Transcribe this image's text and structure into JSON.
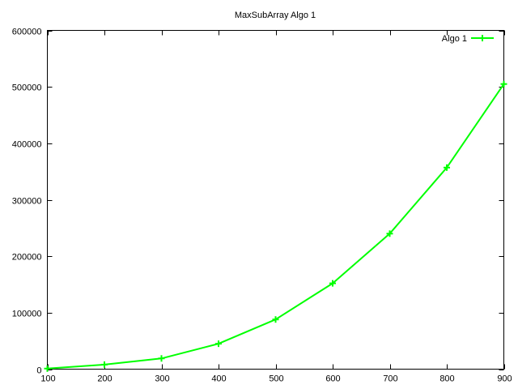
{
  "chart_data": {
    "type": "line",
    "title": "MaxSubArray Algo 1",
    "xlabel": "",
    "ylabel": "",
    "xlim": [
      100,
      900
    ],
    "ylim": [
      0,
      600000
    ],
    "x_ticks": [
      100,
      200,
      300,
      400,
      500,
      600,
      700,
      800,
      900
    ],
    "y_ticks": [
      0,
      100000,
      200000,
      300000,
      400000,
      500000,
      600000
    ],
    "grid": false,
    "legend_position": "top-right",
    "series": [
      {
        "name": "Algo 1",
        "color": "#00ff00",
        "marker": "plus",
        "x": [
          100,
          200,
          300,
          400,
          500,
          600,
          700,
          800,
          900
        ],
        "y": [
          1000,
          8000,
          19000,
          45000,
          88000,
          152000,
          240000,
          357000,
          505000
        ]
      }
    ]
  }
}
